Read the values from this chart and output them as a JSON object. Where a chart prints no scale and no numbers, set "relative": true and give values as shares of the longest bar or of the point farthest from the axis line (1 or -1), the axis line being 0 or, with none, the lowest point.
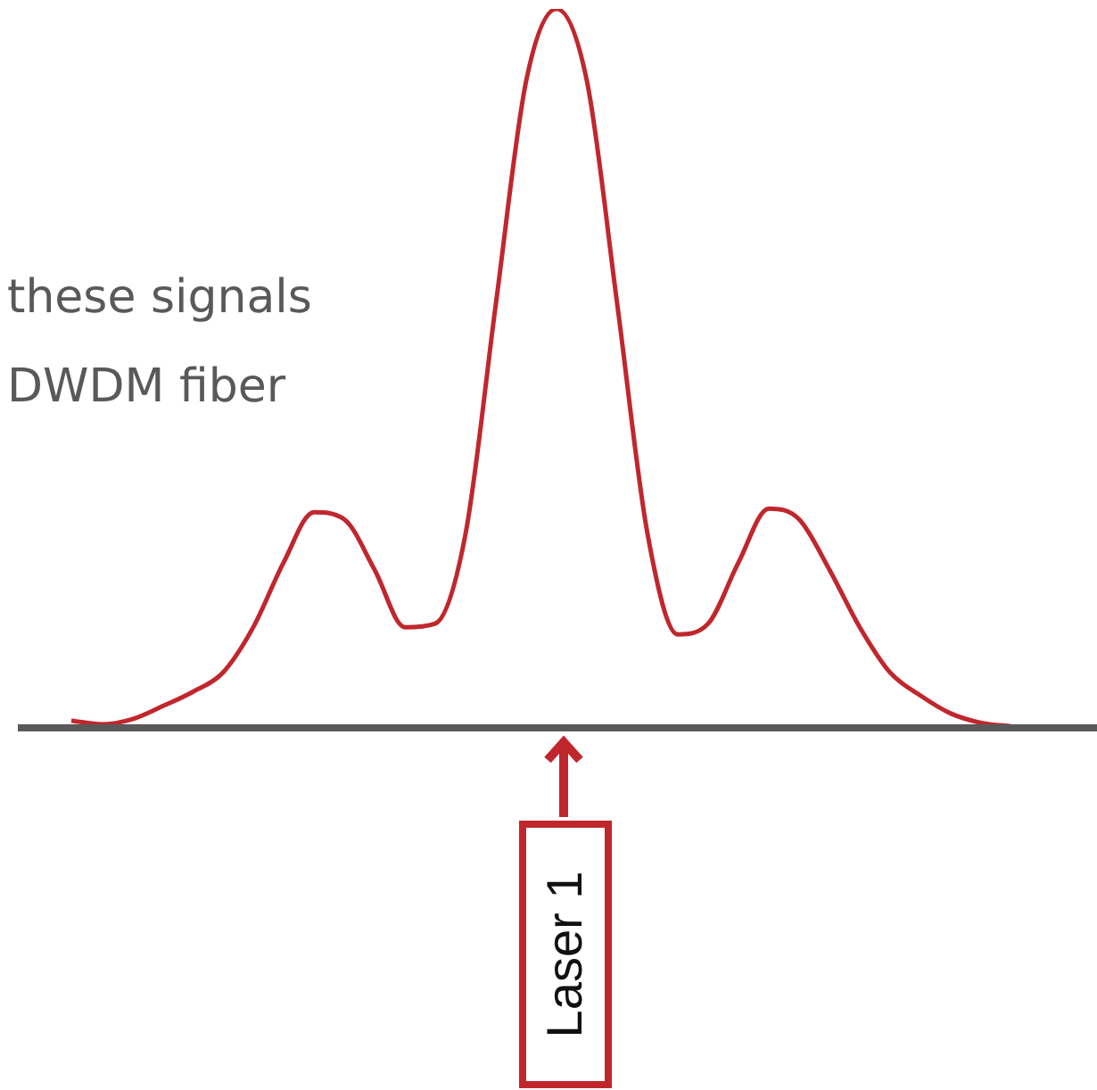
{
  "chart_data": {
    "type": "line",
    "relative": true,
    "marker": "none",
    "categories": [
      null,
      null,
      null,
      null,
      null,
      null,
      null,
      null,
      null,
      null,
      null,
      null,
      null,
      null,
      null,
      null,
      null,
      null,
      null,
      null,
      null,
      null,
      null,
      null,
      null,
      null,
      null,
      null,
      null,
      null,
      null,
      null
    ],
    "series": [
      {
        "color": "#c0272d",
        "values": [
          0.01,
          0.005,
          0.012,
          0.03,
          0.05,
          0.077,
          0.14,
          0.23,
          0.3,
          0.29,
          0.22,
          0.14,
          0.145,
          0.27,
          0.59,
          0.9,
          1,
          0.9,
          0.59,
          0.27,
          0.13,
          0.145,
          0.23,
          0.305,
          0.29,
          0.22,
          0.14,
          0.077,
          0.045,
          0.02,
          0.007,
          0.002
        ]
      }
    ],
    "annotations": [
      "these signals",
      "DWDM fiber",
      "Laser 1"
    ]
  }
}
